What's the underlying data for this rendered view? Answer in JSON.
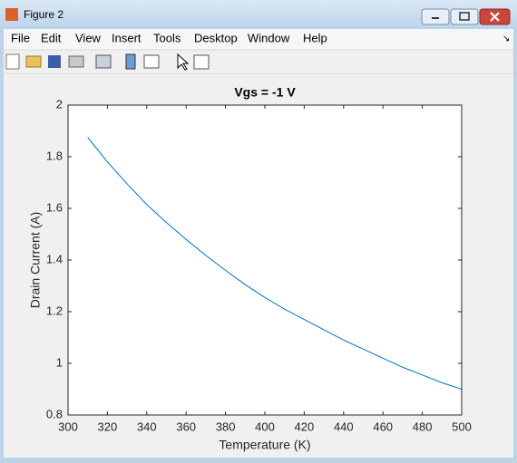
{
  "window": {
    "title": "Figure 2",
    "menu": [
      "File",
      "Edit",
      "View",
      "Insert",
      "Tools",
      "Desktop",
      "Window",
      "Help"
    ]
  },
  "chart_data": {
    "type": "line",
    "title": "Vgs = -1 V",
    "x_label": "Temperature (K)",
    "y_label": "Drain Current (A)",
    "x": [
      310,
      320,
      330,
      340,
      350,
      360,
      370,
      380,
      390,
      400,
      410,
      420,
      430,
      440,
      450,
      460,
      470,
      480,
      490,
      500
    ],
    "series": [
      {
        "color": "#0072bd",
        "values": [
          1.875,
          1.78,
          1.695,
          1.615,
          1.545,
          1.48,
          1.418,
          1.36,
          1.305,
          1.255,
          1.21,
          1.17,
          1.13,
          1.09,
          1.055,
          1.02,
          0.985,
          0.955,
          0.925,
          0.9
        ]
      }
    ],
    "xlim": [
      300,
      500
    ],
    "ylim": [
      0.8,
      2
    ],
    "xticks": [
      300,
      320,
      340,
      360,
      380,
      400,
      420,
      440,
      460,
      480,
      500
    ],
    "yticks": [
      0.8,
      1,
      1.2,
      1.4,
      1.6,
      1.8,
      2
    ],
    "grid": false
  }
}
